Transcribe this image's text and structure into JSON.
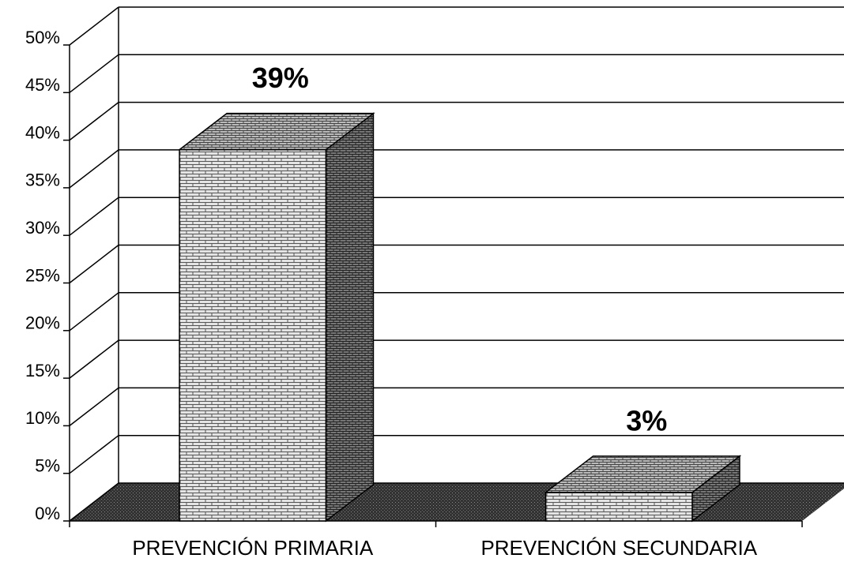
{
  "chart_data": {
    "type": "bar3d",
    "categories": [
      "PREVENCIÓN PRIMARIA",
      "PREVENCIÓN SECUNDARIA"
    ],
    "values": [
      39,
      3
    ],
    "value_labels": [
      "39%",
      "3%"
    ],
    "color": "#d8d8d8",
    "ylim": [
      0,
      50
    ],
    "yticks": [
      {
        "value": 0,
        "label": "0%"
      },
      {
        "value": 5,
        "label": "5%"
      },
      {
        "value": 10,
        "label": "10%"
      },
      {
        "value": 15,
        "label": "15%"
      },
      {
        "value": 20,
        "label": "20%"
      },
      {
        "value": 25,
        "label": "25%"
      },
      {
        "value": 30,
        "label": "30%"
      },
      {
        "value": 35,
        "label": "35%"
      },
      {
        "value": 40,
        "label": "40%"
      },
      {
        "value": 45,
        "label": "45%"
      },
      {
        "value": 50,
        "label": "50%"
      }
    ],
    "grid": true
  }
}
